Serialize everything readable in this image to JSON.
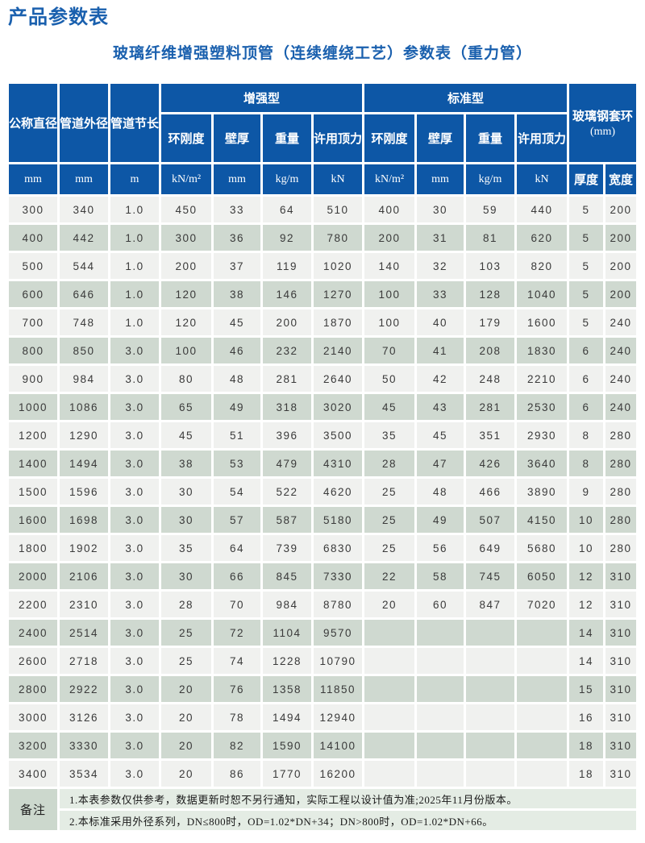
{
  "page": {
    "title": "产品参数表",
    "subtitle": "玻璃纤维增强塑料顶管（连续缠绕工艺）参数表（重力管）"
  },
  "colors": {
    "header_blue": "#0d57a6",
    "title_blue": "#1a60ae",
    "row_light": "#f0f1ef",
    "row_green": "#cfd9d0",
    "note_bg": "#e4ece4",
    "remark_label_bg": "#ccd8cd"
  },
  "table": {
    "header": {
      "nominal_diameter": "公称直径",
      "outer_diameter": "管道外径",
      "section_length": "管道节长",
      "group_reinforced": "增强型",
      "group_standard": "标准型",
      "group_collar": "玻璃钢套环",
      "group_collar_unit": "(mm)",
      "sub_headers": [
        "环刚度",
        "壁厚",
        "重量",
        "许用顶力",
        "环刚度",
        "壁厚",
        "重量",
        "许用顶力"
      ],
      "units_row": [
        "mm",
        "mm",
        "m",
        "kN/m²",
        "mm",
        "kg/m",
        "kN",
        "kN/m²",
        "mm",
        "kg/m",
        "kN",
        "厚度",
        "宽度"
      ]
    },
    "rows": [
      [
        "300",
        "340",
        "1.0",
        "450",
        "33",
        "64",
        "510",
        "400",
        "30",
        "59",
        "440",
        "5",
        "200"
      ],
      [
        "400",
        "442",
        "1.0",
        "300",
        "36",
        "92",
        "780",
        "200",
        "31",
        "81",
        "620",
        "5",
        "200"
      ],
      [
        "500",
        "544",
        "1.0",
        "200",
        "37",
        "119",
        "1020",
        "140",
        "32",
        "103",
        "820",
        "5",
        "200"
      ],
      [
        "600",
        "646",
        "1.0",
        "120",
        "38",
        "146",
        "1270",
        "100",
        "33",
        "128",
        "1040",
        "5",
        "200"
      ],
      [
        "700",
        "748",
        "1.0",
        "120",
        "45",
        "200",
        "1870",
        "100",
        "40",
        "179",
        "1600",
        "5",
        "240"
      ],
      [
        "800",
        "850",
        "3.0",
        "100",
        "46",
        "232",
        "2140",
        "70",
        "41",
        "208",
        "1830",
        "6",
        "240"
      ],
      [
        "900",
        "984",
        "3.0",
        "80",
        "48",
        "281",
        "2640",
        "50",
        "42",
        "248",
        "2210",
        "6",
        "240"
      ],
      [
        "1000",
        "1086",
        "3.0",
        "65",
        "49",
        "318",
        "3020",
        "45",
        "43",
        "281",
        "2530",
        "6",
        "240"
      ],
      [
        "1200",
        "1290",
        "3.0",
        "45",
        "51",
        "396",
        "3500",
        "35",
        "45",
        "351",
        "2930",
        "8",
        "280"
      ],
      [
        "1400",
        "1494",
        "3.0",
        "38",
        "53",
        "479",
        "4310",
        "28",
        "47",
        "426",
        "3640",
        "8",
        "280"
      ],
      [
        "1500",
        "1596",
        "3.0",
        "30",
        "54",
        "522",
        "4620",
        "25",
        "48",
        "466",
        "3890",
        "9",
        "280"
      ],
      [
        "1600",
        "1698",
        "3.0",
        "30",
        "57",
        "587",
        "5180",
        "25",
        "49",
        "507",
        "4150",
        "10",
        "280"
      ],
      [
        "1800",
        "1902",
        "3.0",
        "35",
        "64",
        "739",
        "6830",
        "25",
        "56",
        "649",
        "5680",
        "10",
        "280"
      ],
      [
        "2000",
        "2106",
        "3.0",
        "30",
        "66",
        "845",
        "7330",
        "22",
        "58",
        "745",
        "6050",
        "12",
        "310"
      ],
      [
        "2200",
        "2310",
        "3.0",
        "28",
        "70",
        "984",
        "8780",
        "20",
        "60",
        "847",
        "7020",
        "12",
        "310"
      ],
      [
        "2400",
        "2514",
        "3.0",
        "25",
        "72",
        "1104",
        "9570",
        "",
        "",
        "",
        "",
        "14",
        "310"
      ],
      [
        "2600",
        "2718",
        "3.0",
        "25",
        "74",
        "1228",
        "10790",
        "",
        "",
        "",
        "",
        "14",
        "310"
      ],
      [
        "2800",
        "2922",
        "3.0",
        "20",
        "76",
        "1358",
        "11850",
        "",
        "",
        "",
        "",
        "15",
        "310"
      ],
      [
        "3000",
        "3126",
        "3.0",
        "20",
        "78",
        "1494",
        "12940",
        "",
        "",
        "",
        "",
        "16",
        "310"
      ],
      [
        "3200",
        "3330",
        "3.0",
        "20",
        "82",
        "1590",
        "14100",
        "",
        "",
        "",
        "",
        "18",
        "310"
      ],
      [
        "3400",
        "3534",
        "3.0",
        "20",
        "86",
        "1770",
        "16200",
        "",
        "",
        "",
        "",
        "18",
        "310"
      ]
    ],
    "remark_label": "备注",
    "remarks": [
      "1.本表参数仅供参考，数据更新时恕不另行通知，实际工程以设计值为准;2025年11月份版本。",
      "2.本标准采用外径系列，DN≤800时，OD=1.02*DN+34；DN>800时，OD=1.02*DN+66。"
    ]
  }
}
